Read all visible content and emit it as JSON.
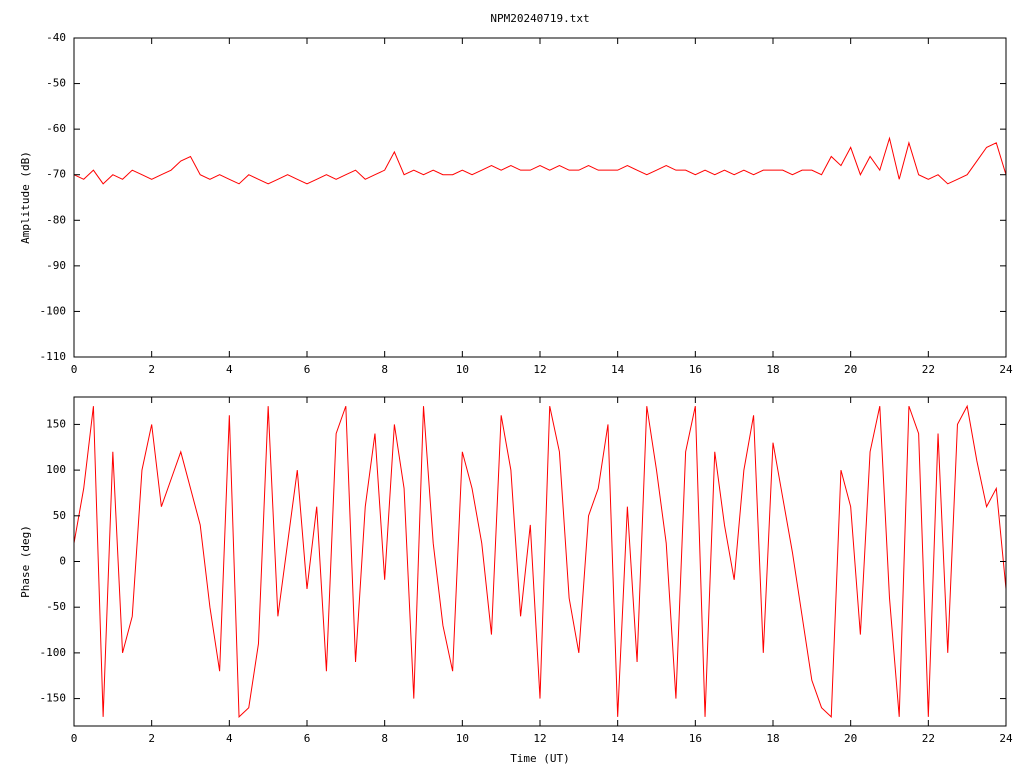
{
  "chart_data": [
    {
      "type": "line",
      "title": "NPM20240719.txt",
      "ylabel": "Amplitude (dB)",
      "color": "#ff0000",
      "xlim": [
        0,
        24
      ],
      "xticks": [
        0,
        2,
        4,
        6,
        8,
        10,
        12,
        14,
        16,
        18,
        20,
        22,
        24
      ],
      "ylim": [
        -110,
        -40
      ],
      "yticks": [
        -110,
        -100,
        -90,
        -80,
        -70,
        -60,
        -50,
        -40
      ],
      "x": [
        0,
        0.25,
        0.5,
        0.75,
        1,
        1.25,
        1.5,
        1.75,
        2,
        2.25,
        2.5,
        2.75,
        3,
        3.25,
        3.5,
        3.75,
        4,
        4.25,
        4.5,
        4.75,
        5,
        5.25,
        5.5,
        5.75,
        6,
        6.25,
        6.5,
        6.75,
        7,
        7.25,
        7.5,
        7.75,
        8,
        8.25,
        8.5,
        8.75,
        9,
        9.25,
        9.5,
        9.75,
        10,
        10.25,
        10.5,
        10.75,
        11,
        11.25,
        11.5,
        11.75,
        12,
        12.25,
        12.5,
        12.75,
        13,
        13.25,
        13.5,
        13.75,
        14,
        14.25,
        14.5,
        14.75,
        15,
        15.25,
        15.5,
        15.75,
        16,
        16.25,
        16.5,
        16.75,
        17,
        17.25,
        17.5,
        17.75,
        18,
        18.25,
        18.5,
        18.75,
        19,
        19.25,
        19.5,
        19.75,
        20,
        20.25,
        20.5,
        20.75,
        21,
        21.25,
        21.5,
        21.75,
        22,
        22.25,
        22.5,
        22.75,
        23,
        23.25,
        23.5,
        23.75,
        24
      ],
      "values": [
        -70,
        -71,
        -69,
        -72,
        -70,
        -71,
        -69,
        -70,
        -71,
        -70,
        -69,
        -67,
        -66,
        -70,
        -71,
        -70,
        -71,
        -72,
        -70,
        -71,
        -72,
        -71,
        -70,
        -71,
        -72,
        -71,
        -70,
        -71,
        -70,
        -69,
        -71,
        -70,
        -69,
        -65,
        -70,
        -69,
        -70,
        -69,
        -70,
        -70,
        -69,
        -70,
        -69,
        -68,
        -69,
        -68,
        -69,
        -69,
        -68,
        -69,
        -68,
        -69,
        -69,
        -68,
        -69,
        -69,
        -69,
        -68,
        -69,
        -70,
        -69,
        -68,
        -69,
        -69,
        -70,
        -69,
        -70,
        -69,
        -70,
        -69,
        -70,
        -69,
        -69,
        -69,
        -70,
        -69,
        -69,
        -70,
        -66,
        -68,
        -64,
        -70,
        -66,
        -69,
        -62,
        -71,
        -63,
        -70,
        -71,
        -70,
        -72,
        -71,
        -70,
        -67,
        -64,
        -63,
        -70
      ]
    },
    {
      "type": "line",
      "xlabel": "Time (UT)",
      "ylabel": "Phase (deg)",
      "color": "#ff0000",
      "xlim": [
        0,
        24
      ],
      "xticks": [
        0,
        2,
        4,
        6,
        8,
        10,
        12,
        14,
        16,
        18,
        20,
        22,
        24
      ],
      "ylim": [
        -180,
        180
      ],
      "yticks": [
        -150,
        -100,
        -50,
        0,
        50,
        100,
        150
      ],
      "x": [
        0,
        0.25,
        0.5,
        0.75,
        1,
        1.25,
        1.5,
        1.75,
        2,
        2.25,
        2.5,
        2.75,
        3,
        3.25,
        3.5,
        3.75,
        4,
        4.25,
        4.5,
        4.75,
        5,
        5.25,
        5.5,
        5.75,
        6,
        6.25,
        6.5,
        6.75,
        7,
        7.25,
        7.5,
        7.75,
        8,
        8.25,
        8.5,
        8.75,
        9,
        9.25,
        9.5,
        9.75,
        10,
        10.25,
        10.5,
        10.75,
        11,
        11.25,
        11.5,
        11.75,
        12,
        12.25,
        12.5,
        12.75,
        13,
        13.25,
        13.5,
        13.75,
        14,
        14.25,
        14.5,
        14.75,
        15,
        15.25,
        15.5,
        15.75,
        16,
        16.25,
        16.5,
        16.75,
        17,
        17.25,
        17.5,
        17.75,
        18,
        18.25,
        18.5,
        18.75,
        19,
        19.25,
        19.5,
        19.75,
        20,
        20.25,
        20.5,
        20.75,
        21,
        21.25,
        21.5,
        21.75,
        22,
        22.25,
        22.5,
        22.75,
        23,
        23.25,
        23.5,
        23.75,
        24
      ],
      "values": [
        20,
        80,
        170,
        -170,
        120,
        -100,
        -60,
        100,
        150,
        60,
        90,
        120,
        80,
        40,
        -50,
        -120,
        160,
        -170,
        -160,
        -90,
        170,
        -60,
        20,
        100,
        -30,
        60,
        -120,
        140,
        170,
        -110,
        60,
        140,
        -20,
        150,
        80,
        -150,
        170,
        20,
        -70,
        -120,
        120,
        80,
        20,
        -80,
        160,
        100,
        -60,
        40,
        -150,
        170,
        120,
        -40,
        -100,
        50,
        80,
        150,
        -170,
        60,
        -110,
        170,
        100,
        20,
        -150,
        120,
        170,
        -170,
        120,
        40,
        -20,
        100,
        160,
        -100,
        130,
        70,
        10,
        -60,
        -130,
        -160,
        -170,
        100,
        60,
        -80,
        120,
        170,
        -40,
        -170,
        170,
        140,
        -170,
        140,
        -100,
        150,
        170,
        110,
        60,
        80,
        -30
      ]
    }
  ]
}
